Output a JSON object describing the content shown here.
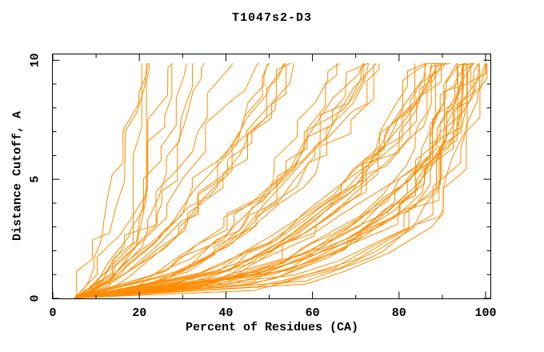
{
  "chart_data": {
    "type": "line",
    "title": "T1047s2-D3",
    "xlabel": "Percent of Residues (CA)",
    "ylabel": "Distance Cutoff, A",
    "xlim": [
      0,
      101.3
    ],
    "ylim": [
      0,
      10.28
    ],
    "x_major_ticks": [
      0,
      20,
      40,
      60,
      80,
      100
    ],
    "x_minor_ticks": [
      10,
      30,
      50,
      70,
      90
    ],
    "y_major_ticks": [
      0,
      5,
      10
    ],
    "y_minor_ticks": [
      1,
      2,
      3,
      4,
      6,
      7,
      8,
      9
    ],
    "grid": false,
    "legend": "none",
    "curve_color": "#ff8c00",
    "axis_color": "#000000",
    "background_color": "#ffffff",
    "curve_clip_max_cutoff": 9.87,
    "jitter_seed": 7,
    "cutoff_anchors": [
      0.02,
      0.2,
      0.6,
      1.2,
      2,
      3,
      4.5,
      6,
      8,
      9.85
    ],
    "series_percent_at_cutoff": [
      [
        5,
        45,
        55,
        66,
        76,
        84,
        90,
        93,
        96,
        98
      ],
      [
        5,
        40,
        52,
        63,
        73,
        82,
        88,
        92,
        95,
        97.5
      ],
      [
        5.5,
        48,
        58,
        68,
        78,
        85,
        91,
        94,
        96.5,
        99
      ],
      [
        5,
        35,
        50,
        62,
        74,
        83,
        89,
        92.5,
        95.5,
        98
      ],
      [
        6,
        42,
        54,
        65,
        75,
        83.5,
        90.5,
        93.5,
        96,
        98.5
      ],
      [
        5,
        50,
        60,
        70,
        80,
        86,
        91.5,
        94.5,
        97,
        99.5
      ],
      [
        5,
        28,
        42,
        52,
        62,
        72,
        82,
        88,
        93,
        96
      ],
      [
        5,
        25,
        40,
        50,
        60,
        70,
        80,
        87,
        92,
        95
      ],
      [
        5.5,
        30,
        44,
        54,
        64,
        74,
        84,
        89,
        94,
        97
      ],
      [
        5,
        22,
        38,
        48,
        58,
        68,
        79,
        86,
        91,
        94.5
      ],
      [
        6,
        32,
        45,
        56,
        66,
        76,
        85,
        90,
        94,
        96.5
      ],
      [
        5,
        26,
        41,
        51,
        61,
        71,
        81,
        87.5,
        92.5,
        95.5
      ],
      [
        5.5,
        34,
        46,
        57,
        67,
        77,
        86,
        91,
        94.5,
        97.5
      ],
      [
        5,
        24,
        39,
        49,
        59,
        69,
        80,
        86.5,
        91.5,
        95
      ],
      [
        6,
        29,
        43,
        53,
        63,
        73,
        83,
        88.5,
        93.5,
        96
      ],
      [
        5,
        27,
        42,
        52.5,
        62.5,
        72.5,
        82.5,
        88,
        93,
        96.5
      ],
      [
        5,
        31,
        44.5,
        55,
        65,
        75,
        84.5,
        89.5,
        94,
        97
      ],
      [
        5.5,
        23,
        38.5,
        48.5,
        58.5,
        68.5,
        79.5,
        86,
        91,
        94
      ],
      [
        5,
        33,
        45.5,
        56.5,
        66.5,
        76.5,
        85.5,
        90.5,
        94.5,
        98
      ],
      [
        6,
        28.5,
        42.5,
        53,
        63.5,
        73.5,
        83.5,
        89,
        93.5,
        96
      ],
      [
        5,
        20,
        32,
        42,
        50,
        60,
        70,
        77,
        84,
        89
      ],
      [
        5.5,
        18,
        30,
        40,
        48,
        58,
        68,
        75,
        82,
        87
      ],
      [
        5,
        22,
        34,
        44,
        52,
        62,
        72,
        79,
        85,
        90
      ],
      [
        6,
        16,
        28,
        38,
        46,
        56,
        66,
        73,
        80,
        85
      ],
      [
        5,
        21,
        33,
        43,
        51,
        61,
        71,
        78,
        84.5,
        91
      ],
      [
        5.5,
        19,
        31,
        41,
        49,
        59,
        69,
        76,
        83,
        88
      ],
      [
        5,
        23,
        35,
        45,
        53,
        63,
        73,
        80,
        86,
        92
      ],
      [
        6,
        17,
        29,
        39,
        47,
        57,
        67,
        74,
        81,
        86
      ],
      [
        5,
        20.5,
        32.5,
        42.5,
        50.5,
        60.5,
        70.5,
        77.5,
        84,
        90
      ],
      [
        5.5,
        18.5,
        30.5,
        40.5,
        48.5,
        58.5,
        68.5,
        75.5,
        82.5,
        88.5
      ],
      [
        5,
        24,
        36,
        46,
        54,
        64,
        74,
        81,
        87,
        92.5
      ],
      [
        6,
        15,
        27,
        37,
        45,
        55,
        65,
        72,
        79,
        84
      ],
      [
        5,
        14,
        22,
        30,
        37,
        45,
        53,
        60,
        68,
        74
      ],
      [
        5.5,
        12,
        20,
        28,
        35,
        43,
        51,
        58,
        65,
        71
      ],
      [
        5,
        15,
        24,
        32,
        39,
        47,
        55,
        62,
        70,
        76
      ],
      [
        6,
        11,
        19,
        26,
        33,
        41,
        49,
        56,
        63,
        69
      ],
      [
        5,
        13,
        21,
        29,
        36,
        44,
        52,
        59,
        66,
        72
      ],
      [
        5.5,
        16,
        25,
        33,
        40,
        48,
        56,
        63,
        71,
        77
      ],
      [
        5,
        10,
        18,
        25,
        32,
        40,
        48,
        55,
        62,
        67
      ],
      [
        6,
        14.5,
        23,
        31,
        38,
        46,
        54,
        61,
        68.5,
        75
      ],
      [
        5,
        12.5,
        20.5,
        28.5,
        35.5,
        43.5,
        51.5,
        58.5,
        65.5,
        72.5
      ],
      [
        5.5,
        11,
        19.5,
        27,
        34,
        42,
        50,
        57,
        64,
        70
      ],
      [
        5,
        9,
        14,
        19,
        24,
        30,
        37,
        43,
        50,
        55
      ],
      [
        5.5,
        8,
        13,
        18,
        23,
        29,
        36,
        42,
        48,
        53
      ],
      [
        5,
        10,
        15,
        20,
        25,
        31,
        38,
        44,
        51,
        56
      ],
      [
        6,
        8.5,
        13.5,
        18.5,
        23.5,
        29.5,
        36.5,
        42.5,
        49,
        54
      ],
      [
        5,
        9.5,
        14.5,
        19.5,
        24.5,
        30.5,
        37.5,
        43.5,
        50.5,
        55.5
      ],
      [
        5.5,
        8,
        12,
        16,
        21,
        27,
        33,
        39,
        45,
        50
      ],
      [
        5,
        7.5,
        11,
        15,
        19,
        24,
        30,
        35,
        41,
        46
      ],
      [
        6,
        9,
        13,
        17,
        22,
        28,
        34,
        40,
        46,
        51
      ],
      [
        5,
        7,
        10,
        13.5,
        17.5,
        22,
        27.5,
        32.5,
        38,
        42
      ],
      [
        5,
        8,
        11,
        14,
        17,
        18.5,
        19.5,
        20,
        20.5,
        21
      ],
      [
        5.5,
        9,
        12,
        15.5,
        18,
        20,
        21,
        21.5,
        22,
        22.5
      ],
      [
        5,
        6.5,
        7.5,
        8.5,
        10,
        11.5,
        13.5,
        16,
        19,
        21
      ],
      [
        5.5,
        7,
        8,
        9.5,
        11,
        13,
        15,
        17.5,
        20.5,
        23
      ],
      [
        6,
        8,
        11,
        14,
        17,
        20,
        23,
        25,
        27,
        28.5
      ],
      [
        5,
        8.5,
        12,
        15.5,
        19,
        22,
        25.5,
        28,
        30.5,
        32
      ],
      [
        6,
        9,
        12.5,
        16,
        19.5,
        23,
        26.5,
        29.5,
        32.5,
        34
      ],
      [
        5,
        7,
        9.5,
        12,
        14.5,
        17.5,
        20.5,
        23,
        25.5,
        27
      ],
      [
        5.5,
        8,
        10.5,
        13,
        16,
        19,
        22.5,
        25.5,
        28.5,
        30
      ],
      [
        5,
        26,
        40,
        52,
        64,
        76,
        86.5,
        87,
        87,
        87
      ]
    ]
  }
}
